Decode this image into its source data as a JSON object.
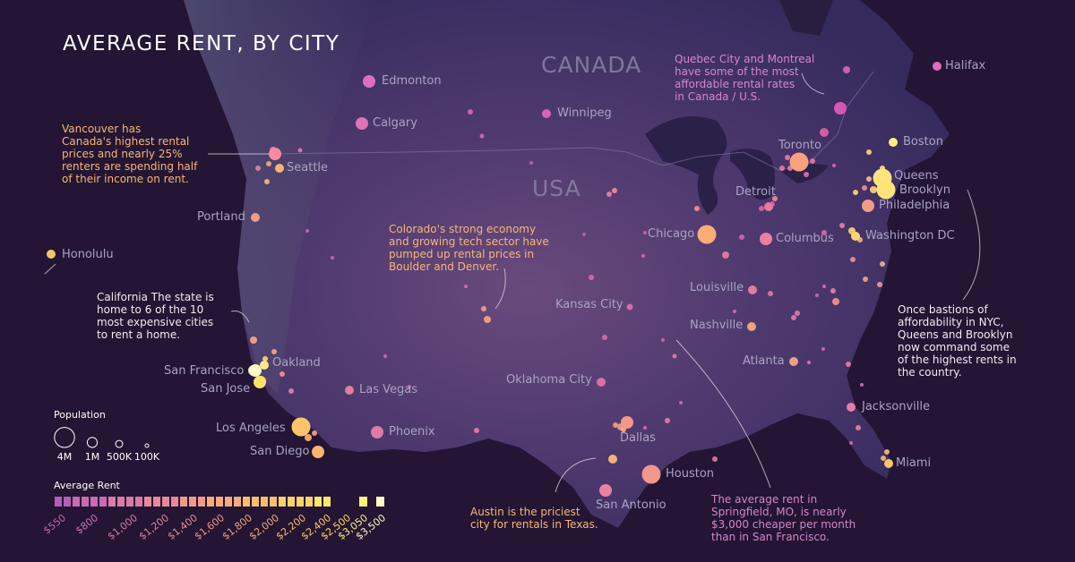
{
  "title": "AVERAGE RENT, BY CITY",
  "countries": [
    {
      "key": "canada",
      "label": "CANADA"
    },
    {
      "key": "usa",
      "label": "USA"
    }
  ],
  "notes": {
    "vancouver": "Vancouver has\nCanada's highest rental\nprices and nearly 25%\nrenters are spending half\nof their income on rent.",
    "california": "California The state is\nhome to 6 of the 10\nmost expensive cities\nto rent a home.",
    "colorado": "Colorado's strong economy\nand growing tech sector have\npumped up rental prices in\nBoulder and Denver.",
    "quebec": "Quebec City and Montreal\nhave some of the most\naffordable rental rates\nin Canada / U.S.",
    "nyc": "Once bastions of\naffordability in NYC,\nQueens and Brooklyn\nnow command some\nof the highest rents in\nthe country.",
    "austin": "Austin is the priciest\ncity for rentals in Texas.",
    "springfield": "The average rent in\nSpringfield, MO, is nearly\n$3,000 cheaper per month\nthan in San Francisco."
  },
  "legend": {
    "population_title": "Population",
    "population_sizes": [
      {
        "label": "4M",
        "population_millions": 4
      },
      {
        "label": "1M",
        "population_millions": 1
      },
      {
        "label": "500K",
        "population_millions": 0.5
      },
      {
        "label": "100K",
        "population_millions": 0.1
      }
    ],
    "rent_title": "Average Rent",
    "rent_labels": [
      "$550",
      "$800",
      "$1,000",
      "$1,200",
      "$1,400",
      "$1,600",
      "$1,800",
      "$2,000",
      "$2,200",
      "$2,400",
      "$2,500",
      "$3,050",
      "$3,500"
    ],
    "rent_label_colors": [
      "#c067b8",
      "#cf72b2",
      "#d97aa8",
      "#e2839e",
      "#e98c93",
      "#ef9788",
      "#f4a27e",
      "#f7ad74",
      "#f9b96c",
      "#fbc866",
      "#fcd964",
      "#fff27e",
      "#fffbc8"
    ]
  },
  "cities": [
    {
      "name": "Edmonton",
      "color": "#de6fbe",
      "size": "m"
    },
    {
      "name": "Calgary",
      "color": "#e272b6",
      "size": "m"
    },
    {
      "name": "Winnipeg",
      "color": "#d863b6",
      "size": "s"
    },
    {
      "name": "Vancouver",
      "color": "#f88aa0",
      "size": "m"
    },
    {
      "name": "Seattle",
      "color": "#f6b476",
      "size": "s"
    },
    {
      "name": "Portland",
      "color": "#f39a86",
      "size": "s"
    },
    {
      "name": "Honolulu",
      "color": "#f8c46a",
      "size": "s"
    },
    {
      "name": "San Francisco",
      "color": "#fff8c8",
      "size": "m"
    },
    {
      "name": "Oakland",
      "color": "#fde987",
      "size": "s"
    },
    {
      "name": "San Jose",
      "color": "#fde06a",
      "size": "m"
    },
    {
      "name": "Las Vegas",
      "color": "#e07f9e",
      "size": "s"
    },
    {
      "name": "Los Angeles",
      "color": "#fcc46b",
      "size": "l"
    },
    {
      "name": "San Diego",
      "color": "#f9b46e",
      "size": "m"
    },
    {
      "name": "Phoenix",
      "color": "#e079a6",
      "size": "m"
    },
    {
      "name": "Kansas City",
      "color": "#d36cad",
      "size": "xs"
    },
    {
      "name": "Oklahoma City",
      "color": "#d86fa9",
      "size": "s"
    },
    {
      "name": "Dallas",
      "color": "#f29886",
      "size": "m"
    },
    {
      "name": "Austin",
      "color": "#f6b07a",
      "size": "s"
    },
    {
      "name": "San Antonio",
      "color": "#ea82a3",
      "size": "m"
    },
    {
      "name": "Houston",
      "color": "#f1978c",
      "size": "l"
    },
    {
      "name": "Chicago",
      "color": "#f9ad77",
      "size": "l"
    },
    {
      "name": "Detroit",
      "color": "#e87a9f",
      "size": "s"
    },
    {
      "name": "Toronto",
      "color": "#f9a07c",
      "size": "l"
    },
    {
      "name": "Columbus",
      "color": "#ea80a0",
      "size": "m"
    },
    {
      "name": "Louisville",
      "color": "#e47ba2",
      "size": "s"
    },
    {
      "name": "Nashville",
      "color": "#f0a181",
      "size": "s"
    },
    {
      "name": "Atlanta",
      "color": "#f09e86",
      "size": "s"
    },
    {
      "name": "Jacksonville",
      "color": "#e67ea6",
      "size": "s"
    },
    {
      "name": "Miami",
      "color": "#fbc56a",
      "size": "s"
    },
    {
      "name": "Washington DC",
      "color": "#fbd672",
      "size": "s"
    },
    {
      "name": "Philadelphia",
      "color": "#f39c85",
      "size": "m"
    },
    {
      "name": "Queens",
      "color": "#fde57d",
      "size": "l"
    },
    {
      "name": "Brooklyn",
      "color": "#fde37a",
      "size": "l"
    },
    {
      "name": "Boston",
      "color": "#fef07e",
      "size": "s"
    },
    {
      "name": "Halifax",
      "color": "#dd6cbb",
      "size": "s"
    }
  ]
}
